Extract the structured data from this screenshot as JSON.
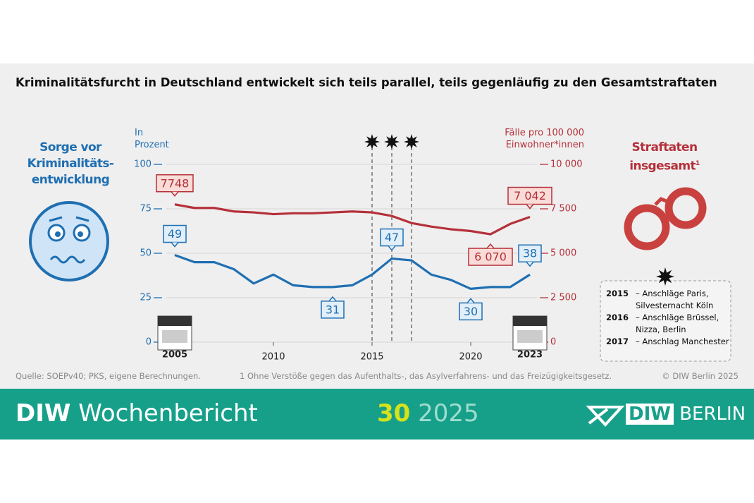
{
  "title": "Kriminalitätsfurcht in Deutschland entwickelt sich teils parallel, teils gegenläufig zu den Gesamtstraftaten",
  "chart_data": {
    "type": "line",
    "x": [
      2005,
      2006,
      2007,
      2008,
      2009,
      2010,
      2011,
      2012,
      2013,
      2014,
      2015,
      2016,
      2017,
      2018,
      2019,
      2020,
      2021,
      2022,
      2023
    ],
    "xlim": [
      2005,
      2023
    ],
    "xticks": [
      2005,
      2010,
      2015,
      2020,
      2023
    ],
    "ylabel": "In Prozent",
    "ylim": [
      0,
      100
    ],
    "yticks": [
      0,
      25,
      50,
      75,
      100
    ],
    "y2label": "Fälle pro 100 000 Einwohner*innen",
    "y2lim": [
      0,
      10000
    ],
    "y2ticks": [
      0,
      {
        "value": 2500,
        "label": "2 500"
      },
      {
        "value": 5000,
        "label": "5 000"
      },
      {
        "value": 7500,
        "label": "7 500"
      },
      {
        "value": 10000,
        "label": "10 000"
      }
    ],
    "grid": true,
    "series": [
      {
        "name": "Sorge vor Kriminalitäts-entwicklung",
        "color": "#1f6fb2",
        "values": [
          49,
          45,
          45,
          41,
          33,
          38,
          32,
          31,
          31,
          32,
          38,
          47,
          46,
          38,
          35,
          30,
          31,
          31,
          38
        ],
        "value_labels": [
          "49",
          null,
          null,
          null,
          null,
          null,
          null,
          null,
          "31",
          null,
          null,
          "47",
          null,
          null,
          null,
          "30",
          null,
          null,
          "38"
        ]
      },
      {
        "name": "Straftaten insgesamt",
        "footnote_marker": "1",
        "color": "#b5303a",
        "axis": "y2",
        "values": [
          7748,
          7550,
          7550,
          7350,
          7300,
          7200,
          7250,
          7250,
          7300,
          7350,
          7300,
          7100,
          6700,
          6500,
          6350,
          6250,
          6070,
          6650,
          7042
        ],
        "value_labels": [
          "7748",
          null,
          null,
          null,
          null,
          null,
          null,
          null,
          null,
          null,
          null,
          null,
          null,
          null,
          null,
          null,
          "6 070",
          null,
          "7 042"
        ]
      }
    ],
    "events": [
      {
        "year": 2015,
        "label": "– Anschläge Paris, Silvesternacht Köln"
      },
      {
        "year": 2016,
        "label": "– Anschläge Brüssel, Nizza, Berlin"
      },
      {
        "year": 2017,
        "label": "– Anschlag Manchester"
      }
    ]
  },
  "source": "Quelle: SOEPv40; PKS, eigene Berechnungen.",
  "footnote": "1  Ohne Verstöße gegen das Aufenthalts-, das Asylverfahrens- und das Freizügigkeitsgesetz.",
  "copyright": "© DIW Berlin 2025",
  "footer": {
    "brand": "DIW",
    "publication": "Wochenbericht",
    "issue": "30",
    "year": "2025",
    "logo_1": "DIW",
    "logo_2": "BERLIN"
  }
}
